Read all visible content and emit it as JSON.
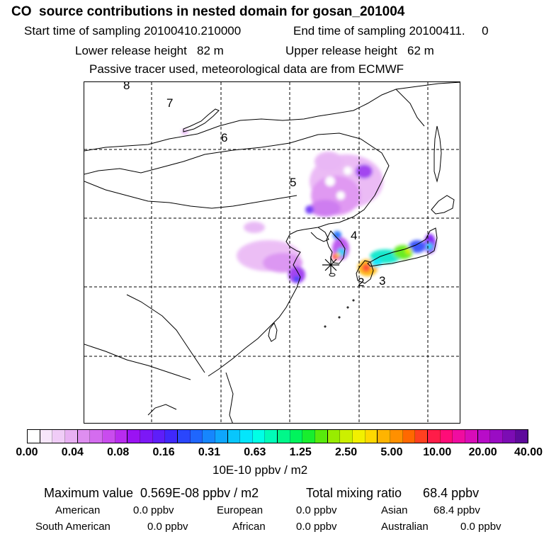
{
  "header": {
    "title": "CO  source contributions in nested domain for gosan_201004",
    "start_time": "Start time of sampling 20100410.210000",
    "end_time": "End time of sampling 20100411.     0",
    "lower_height": "Lower release height   82 m",
    "upper_height": "Upper release height   62 m",
    "note": "Passive tracer used, meteorological data are from ECMWF"
  },
  "map": {
    "trajectory_labels": [
      "8",
      "7",
      "6",
      "5",
      "4",
      "3",
      "2"
    ],
    "release_marker": "release-site-asterisk"
  },
  "colorbar": {
    "colors": [
      "#ffffff",
      "#f7e6fb",
      "#f0ccf7",
      "#e8b0f3",
      "#de8ef0",
      "#d46cef",
      "#c94cee",
      "#b82cef",
      "#9a12f3",
      "#7c18f6",
      "#5e1ef9",
      "#4028fb",
      "#2a46fc",
      "#1f66fd",
      "#1686fd",
      "#0ea6fd",
      "#08c6fc",
      "#04e6fb",
      "#00ffe6",
      "#00fcb8",
      "#00f88a",
      "#00f45c",
      "#18ee2e",
      "#58ea0c",
      "#98ec00",
      "#ccf000",
      "#f2f000",
      "#ffd800",
      "#ffb400",
      "#ff9000",
      "#ff6800",
      "#ff4020",
      "#ff1c48",
      "#ff0c78",
      "#f00ca0",
      "#d80cb8",
      "#b80cc8",
      "#9a0cc4",
      "#7c0cb4",
      "#5e0a9c"
    ],
    "tick_labels": [
      "0.00",
      "0.04",
      "0.08",
      "0.16",
      "0.31",
      "0.63",
      "1.25",
      "2.50",
      "5.00",
      "10.00",
      "20.00",
      "40.00"
    ],
    "unit": "10E-10 ppbv / m2"
  },
  "summary": {
    "max_value": "Maximum value  0.569E-08 ppbv / m2",
    "total": "Total mixing ratio      68.4 ppbv",
    "regions": [
      {
        "name": "American",
        "value": "0.0 ppbv"
      },
      {
        "name": "European",
        "value": "0.0 ppbv"
      },
      {
        "name": "Asian",
        "value": "68.4 ppbv"
      },
      {
        "name": "South American",
        "value": "0.0 ppbv"
      },
      {
        "name": "African",
        "value": "0.0 ppbv"
      },
      {
        "name": "Australian",
        "value": "0.0 ppbv"
      }
    ]
  }
}
